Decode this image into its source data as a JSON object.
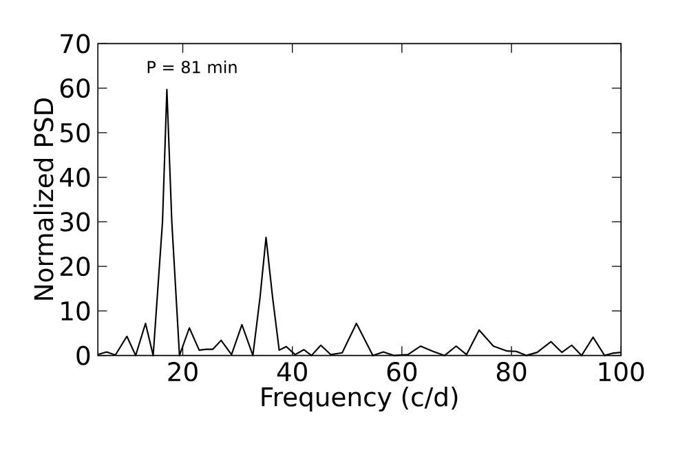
{
  "chart_data": {
    "type": "line",
    "xlabel": "Frequency (c/d)",
    "ylabel": "Normalized PSD",
    "annotations": [
      "P = 81 min"
    ],
    "xlim": [
      4.5,
      100
    ],
    "ylim": [
      0,
      70
    ],
    "xticks": [
      20,
      40,
      60,
      80,
      100
    ],
    "yticks": [
      0,
      10,
      20,
      30,
      40,
      50,
      60,
      70
    ],
    "series": [
      {
        "color": "#000000",
        "x": [
          4.5,
          6.1,
          7.7,
          9.8,
          11.4,
          13.2,
          14.6,
          16.3,
          17.1,
          18.0,
          19.4,
          21.2,
          23.0,
          24.3,
          25.5,
          27.0,
          28.9,
          30.8,
          32.8,
          34.1,
          35.2,
          36.4,
          37.6,
          38.9,
          40.5,
          42.1,
          43.5,
          45.2,
          47.0,
          49.1,
          51.7,
          54.7,
          56.6,
          58.6,
          61.1,
          63.4,
          65.7,
          67.8,
          69.9,
          71.8,
          74.1,
          76.7,
          79.2,
          80.9,
          82.7,
          84.7,
          87.2,
          89.2,
          91.0,
          92.8,
          94.9,
          97.0,
          98.4,
          100
        ],
        "values": [
          0.2,
          0.8,
          0.1,
          4.3,
          0,
          7.2,
          0,
          30,
          59.7,
          30,
          0,
          6.2,
          1.2,
          1.4,
          1.4,
          3.4,
          0.2,
          6.9,
          0,
          13,
          26.5,
          13,
          1.2,
          2.0,
          0.2,
          1.3,
          0,
          2.3,
          0.2,
          0.6,
          7.2,
          0,
          0.8,
          0,
          0.2,
          2.1,
          0.9,
          0,
          2.1,
          0.2,
          5.7,
          2.1,
          1.0,
          0.9,
          0,
          0.7,
          3.1,
          0.7,
          2.3,
          0,
          4.1,
          0,
          0.5,
          0.7
        ]
      }
    ]
  }
}
